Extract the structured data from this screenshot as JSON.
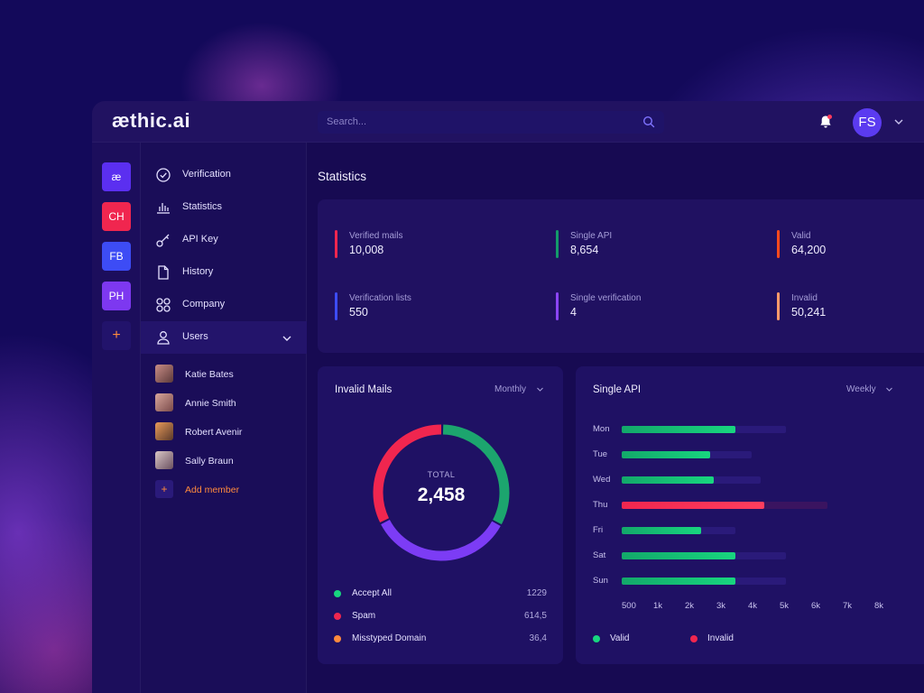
{
  "app": {
    "logo": "æthic.ai",
    "search_placeholder": "Search...",
    "user_initials": "FS"
  },
  "rail": [
    {
      "label": "æ",
      "color": "#5b2ff0"
    },
    {
      "label": "CH",
      "color": "#f0264f"
    },
    {
      "label": "FB",
      "color": "#3d4cf5"
    },
    {
      "label": "PH",
      "color": "#7d38f0"
    },
    {
      "label": "+",
      "color": "#22136b"
    }
  ],
  "sidebar": {
    "items": [
      {
        "label": "Verification",
        "icon": "check-circle-icon"
      },
      {
        "label": "Statistics",
        "icon": "bar-chart-icon"
      },
      {
        "label": "API Key",
        "icon": "key-icon"
      },
      {
        "label": "History",
        "icon": "document-icon"
      },
      {
        "label": "Company",
        "icon": "grid-icon"
      },
      {
        "label": "Users",
        "icon": "user-icon"
      }
    ],
    "members": [
      "Katie Bates",
      "Annie Smith",
      "Robert Avenir",
      "Sally Braun"
    ],
    "add_member": "Add member"
  },
  "main": {
    "title": "Statistics",
    "stats": [
      {
        "label": "Verified mails",
        "value": "10,008",
        "color": "#f0264f"
      },
      {
        "label": "Single API",
        "value": "8,654",
        "color": "#149a6a"
      },
      {
        "label": "Valid",
        "value": "64,200",
        "color": "#ff4a1c"
      },
      {
        "label": "Verification lists",
        "value": "550",
        "color": "#3d4cf5"
      },
      {
        "label": "Single verification",
        "value": "4",
        "color": "#8b45f5"
      },
      {
        "label": "Invalid",
        "value": "50,241",
        "color": "#ff9a6a"
      }
    ]
  },
  "invalid_card": {
    "title": "Invalid Mails",
    "period": "Monthly",
    "total_label": "TOTAL",
    "total_value": "2,458"
  },
  "api_card": {
    "title": "Single API",
    "period": "Weekly"
  },
  "chart_data": [
    {
      "type": "pie",
      "title": "Invalid Mails",
      "categories": [
        "Accept All",
        "Spam",
        "Misstyped Domain"
      ],
      "values": [
        1229,
        614.5,
        36.4
      ],
      "value_labels": [
        "1229",
        "614,5",
        "36,4"
      ],
      "colors": [
        "#18d67f",
        "#f0264f",
        "#ff8a3d"
      ]
    },
    {
      "type": "bar",
      "title": "Single API",
      "orientation": "horizontal",
      "categories": [
        "Mon",
        "Tue",
        "Wed",
        "Thu",
        "Fri",
        "Sat",
        "Sun"
      ],
      "x_ticks": [
        "500",
        "1k",
        "2k",
        "3k",
        "4k",
        "5k",
        "6k",
        "7k",
        "8k"
      ],
      "series": [
        {
          "name": "Valid",
          "color": "#18d67f",
          "values": [
            3.6,
            2.8,
            2.9,
            0,
            2.5,
            3.6,
            3.6
          ]
        },
        {
          "name": "Invalid",
          "color": "#f0264f",
          "values": [
            0,
            0,
            0,
            4.5,
            0,
            0,
            0
          ]
        }
      ],
      "track": [
        5.2,
        4.1,
        4.4,
        6.5,
        3.6,
        5.2,
        5.2
      ],
      "xlim": [
        0,
        8
      ]
    }
  ]
}
